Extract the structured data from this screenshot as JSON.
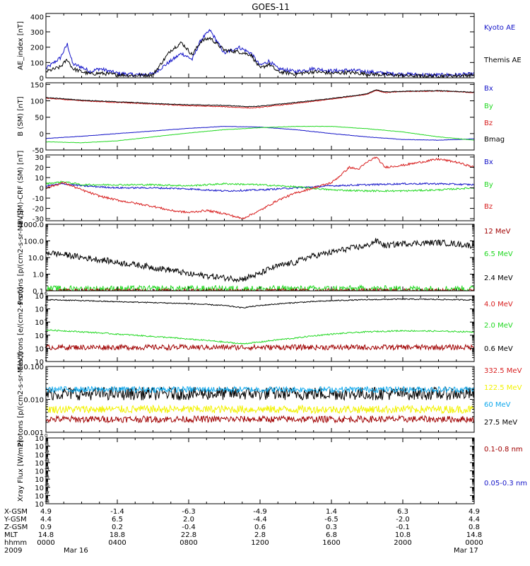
{
  "figure": {
    "title": "GOES-11"
  },
  "colors": {
    "axis": "#000000",
    "black": "#000000",
    "blue": "#1414c8",
    "red": "#d82020",
    "green": "#22d822",
    "darkred": "#a00000",
    "sky": "#10a8ec",
    "yellow": "#f2f200"
  },
  "chart_data": [
    {
      "type": "line",
      "ylabel": "AE_index [nT]",
      "ylim": [
        0,
        420
      ],
      "scale": "linear",
      "yticks": [
        {
          "v": 0,
          "label": "0"
        },
        {
          "v": 100,
          "label": "100"
        },
        {
          "v": 200,
          "label": "200"
        },
        {
          "v": 300,
          "label": "300"
        },
        {
          "v": 400,
          "label": "400"
        }
      ],
      "legend": [
        "Kyoto AE",
        "Themis AE"
      ],
      "series": [
        {
          "name": "Kyoto AE",
          "color": "blue",
          "noise": 12,
          "x": [
            0,
            0.8,
            1.2,
            1.5,
            2.0,
            2.5,
            3.0,
            4.0,
            5.0,
            6.0,
            7.0,
            7.6,
            8.2,
            8.7,
            9.2,
            10.0,
            10.8,
            11.5,
            12.0,
            12.5,
            13.0,
            14.0,
            15.0,
            16.0,
            17.0,
            18.0,
            19.0,
            20.0,
            21.0,
            22.0,
            23.0,
            24.0
          ],
          "y": [
            60,
            130,
            220,
            90,
            70,
            40,
            60,
            30,
            20,
            25,
            110,
            160,
            120,
            250,
            310,
            160,
            200,
            160,
            80,
            110,
            60,
            40,
            60,
            45,
            50,
            40,
            30,
            25,
            20,
            18,
            20,
            25
          ]
        },
        {
          "name": "Themis AE",
          "color": "black",
          "noise": 12,
          "x": [
            0,
            0.8,
            1.2,
            1.5,
            2.0,
            2.5,
            3.0,
            4.0,
            5.0,
            6.0,
            7.0,
            7.6,
            8.2,
            8.7,
            9.2,
            10.0,
            10.8,
            11.5,
            12.0,
            12.5,
            13.0,
            14.0,
            15.0,
            16.0,
            17.0,
            18.0,
            19.0,
            20.0,
            21.0,
            22.0,
            23.0,
            24.0
          ],
          "y": [
            40,
            70,
            120,
            60,
            40,
            25,
            30,
            20,
            15,
            20,
            180,
            230,
            150,
            240,
            260,
            180,
            170,
            150,
            60,
            90,
            40,
            25,
            40,
            30,
            35,
            25,
            20,
            15,
            12,
            12,
            14,
            18
          ]
        }
      ]
    },
    {
      "type": "line",
      "ylabel": "B (SM) [nT]",
      "ylim": [
        -50,
        155
      ],
      "scale": "linear",
      "yticks": [
        {
          "v": -50,
          "label": "-50"
        },
        {
          "v": 0,
          "label": "0"
        },
        {
          "v": 50,
          "label": "50"
        },
        {
          "v": 100,
          "label": "100"
        },
        {
          "v": 150,
          "label": "150"
        }
      ],
      "legend": [
        "Bx",
        "By",
        "Bz",
        "Bmag"
      ],
      "series": [
        {
          "name": "Bx",
          "color": "blue",
          "noise": 0.5,
          "x": [
            0,
            2,
            4,
            6,
            8,
            10,
            12,
            14,
            16,
            18,
            20,
            22,
            24
          ],
          "y": [
            -15,
            -8,
            0,
            8,
            16,
            22,
            20,
            12,
            0,
            -10,
            -18,
            -20,
            -16
          ]
        },
        {
          "name": "By",
          "color": "green",
          "noise": 0.5,
          "x": [
            0,
            2,
            4,
            6,
            8,
            10,
            12,
            14,
            16,
            18,
            20,
            22,
            24
          ],
          "y": [
            -25,
            -28,
            -22,
            -10,
            2,
            12,
            18,
            22,
            22,
            15,
            5,
            -10,
            -20
          ]
        },
        {
          "name": "Bz",
          "color": "red",
          "noise": 1.2,
          "x": [
            0,
            2,
            4,
            6,
            8,
            10,
            11.5,
            12,
            14,
            16,
            18,
            18.5,
            19,
            20,
            22,
            24
          ],
          "y": [
            108,
            100,
            95,
            90,
            85,
            82,
            78,
            80,
            92,
            105,
            120,
            132,
            125,
            128,
            130,
            125
          ]
        },
        {
          "name": "Bmag",
          "color": "black",
          "noise": 1.0,
          "x": [
            0,
            2,
            4,
            6,
            8,
            10,
            11.5,
            12,
            14,
            16,
            18,
            18.5,
            19,
            20,
            22,
            24
          ],
          "y": [
            110,
            102,
            97,
            92,
            88,
            86,
            82,
            84,
            95,
            107,
            121,
            134,
            127,
            129,
            131,
            126
          ]
        }
      ]
    },
    {
      "type": "line",
      "ylabel": "B (SM)-CRF (SM) [nT]",
      "ylim": [
        -32,
        32
      ],
      "scale": "linear",
      "yticks": [
        {
          "v": -30,
          "label": "-30"
        },
        {
          "v": -20,
          "label": "-20"
        },
        {
          "v": -10,
          "label": "-10"
        },
        {
          "v": 0,
          "label": "0"
        },
        {
          "v": 10,
          "label": "10"
        },
        {
          "v": 20,
          "label": "20"
        },
        {
          "v": 30,
          "label": "30"
        }
      ],
      "legend": [
        "Bx",
        "By",
        "Bz"
      ],
      "series": [
        {
          "name": "Bx",
          "color": "blue",
          "noise": 0.8,
          "x": [
            0,
            1,
            2,
            4,
            6,
            8,
            10,
            12,
            14,
            16,
            18,
            20,
            22,
            24
          ],
          "y": [
            2,
            4,
            2,
            0,
            0,
            -1,
            -3,
            -2,
            0,
            2,
            3,
            4,
            4,
            3
          ]
        },
        {
          "name": "By",
          "color": "green",
          "noise": 0.8,
          "x": [
            0,
            1,
            2,
            4,
            6,
            8,
            10,
            12,
            14,
            16,
            18,
            20,
            22,
            24
          ],
          "y": [
            4,
            6,
            3,
            3,
            3,
            2,
            4,
            3,
            1,
            -2,
            -3,
            -3,
            -2,
            0
          ]
        },
        {
          "name": "Bz",
          "color": "red",
          "noise": 1.0,
          "x": [
            0,
            1,
            2,
            3,
            4,
            5,
            6,
            7,
            8,
            9,
            10,
            11,
            12,
            13,
            14,
            15,
            16,
            16.5,
            17,
            17.5,
            18,
            18.5,
            19,
            20,
            21,
            22,
            23,
            24
          ],
          "y": [
            0,
            5,
            -2,
            -8,
            -12,
            -15,
            -18,
            -22,
            -24,
            -22,
            -25,
            -30,
            -22,
            -12,
            -5,
            0,
            5,
            12,
            20,
            18,
            25,
            30,
            20,
            22,
            25,
            28,
            25,
            20
          ]
        }
      ]
    },
    {
      "type": "line",
      "ylabel": "Protons [p/(cm2-s-sr-MeV)]",
      "ylim": [
        0.1,
        1000
      ],
      "scale": "log",
      "yticks": [
        {
          "v": 0.1,
          "label": "0.1"
        },
        {
          "v": 1,
          "label": "1.0"
        },
        {
          "v": 10,
          "label": "10.0"
        },
        {
          "v": 100,
          "label": "100.0"
        },
        {
          "v": 1000,
          "label": "1000.0"
        }
      ],
      "legend": [
        "12 MeV",
        "6.5 MeV",
        "2.4 MeV"
      ],
      "series": [
        {
          "name": "2.4 MeV",
          "color": "black",
          "noise": 0.18,
          "x": [
            0,
            2,
            4,
            6,
            8,
            10,
            11,
            12,
            14,
            16,
            18,
            18.5,
            19,
            20,
            22,
            24
          ],
          "y": [
            20,
            10,
            5,
            2.5,
            1,
            0.6,
            0.5,
            1.0,
            5,
            20,
            50,
            100,
            50,
            70,
            80,
            50
          ]
        },
        {
          "name": "6.5 MeV",
          "color": "green",
          "noise": 0.2,
          "x": [
            0,
            24
          ],
          "y": [
            0.13,
            0.13
          ]
        },
        {
          "name": "12 MeV",
          "color": "darkred",
          "noise": 0.1,
          "x": [
            0,
            24
          ],
          "y": [
            0.105,
            0.105
          ]
        }
      ]
    },
    {
      "type": "line",
      "ylabel": "Electrons [e/(cm2-s-sr)]",
      "ylim": [
        10,
        1000000
      ],
      "scale": "log",
      "yticks": [
        {
          "v": 10,
          "label": "10"
        },
        {
          "v": 100,
          "label": "10"
        },
        {
          "v": 1000,
          "label": "10"
        },
        {
          "v": 10000,
          "label": "10"
        },
        {
          "v": 100000,
          "label": "10"
        },
        {
          "v": 1000000,
          "label": "10"
        }
      ],
      "legend": [
        "4.0 MeV",
        "2.0 MeV",
        "0.6 MeV"
      ],
      "series": [
        {
          "name": "0.6 MeV",
          "color": "black",
          "noise": 0.04,
          "x": [
            0,
            4,
            8,
            10,
            11,
            12,
            14,
            16,
            18,
            20,
            22,
            24
          ],
          "y": [
            500000,
            350000,
            250000,
            180000,
            120000,
            180000,
            300000,
            420000,
            500000,
            550000,
            520000,
            480000
          ]
        },
        {
          "name": "2.0 MeV",
          "color": "green",
          "noise": 0.05,
          "x": [
            0,
            2,
            4,
            6,
            8,
            10,
            11,
            12,
            14,
            16,
            18,
            20,
            22,
            24
          ],
          "y": [
            2500,
            1800,
            1200,
            800,
            500,
            300,
            220,
            300,
            600,
            1200,
            1800,
            2200,
            2000,
            1800
          ]
        },
        {
          "name": "4.0 MeV",
          "color": "darkred",
          "noise": 0.2,
          "x": [
            0,
            24
          ],
          "y": [
            120,
            120
          ]
        }
      ]
    },
    {
      "type": "line",
      "ylabel": "Protons [p/(cm2-s-sr-MeV)]",
      "ylim": [
        0.001,
        0.1
      ],
      "scale": "log",
      "yticks": [
        {
          "v": 0.001,
          "label": "0.001"
        },
        {
          "v": 0.01,
          "label": "0.010"
        },
        {
          "v": 0.1,
          "label": "0.100"
        }
      ],
      "legend": [
        "332.5 MeV",
        "122.5 MeV",
        "60 MeV",
        "27.5 MeV"
      ],
      "series": [
        {
          "name": "332.5 MeV",
          "color": "darkred",
          "noise": 0.1,
          "x": [
            0,
            24
          ],
          "y": [
            0.0025,
            0.0025
          ]
        },
        {
          "name": "122.5 MeV",
          "color": "yellow",
          "noise": 0.12,
          "x": [
            0,
            24
          ],
          "y": [
            0.005,
            0.005
          ]
        },
        {
          "name": "27.5 MeV",
          "color": "black",
          "noise": 0.2,
          "x": [
            0,
            24
          ],
          "y": [
            0.015,
            0.015
          ]
        },
        {
          "name": "60 MeV",
          "color": "sky",
          "noise": 0.09,
          "x": [
            0,
            24
          ],
          "y": [
            0.02,
            0.02
          ]
        }
      ]
    },
    {
      "type": "line",
      "ylabel": "Xray Flux [W/m2]",
      "ylim": [
        1e-08,
        1
      ],
      "scale": "log",
      "yticks": [
        {
          "v": 1e-08,
          "label": "10"
        },
        {
          "v": 1e-07,
          "label": "10"
        },
        {
          "v": 1e-06,
          "label": "10"
        },
        {
          "v": 1e-05,
          "label": "10"
        },
        {
          "v": 0.0001,
          "label": "10"
        },
        {
          "v": 0.001,
          "label": "10"
        },
        {
          "v": 0.01,
          "label": "10"
        },
        {
          "v": 0.1,
          "label": "10"
        },
        {
          "v": 1,
          "label": "10"
        }
      ],
      "legend": [
        "0.1-0.8 nm",
        "0.05-0.3 nm"
      ],
      "series": []
    }
  ],
  "x_axis": {
    "ticks_hours": [
      0,
      4,
      8,
      12,
      16,
      20,
      24
    ],
    "minor_every_hours": 1,
    "rows": [
      {
        "name": "X-GSM",
        "values": [
          "4.9",
          "-1.4",
          "-6.3",
          "-4.9",
          "1.4",
          "6.3",
          "4.9"
        ]
      },
      {
        "name": "Y-GSM",
        "values": [
          "4.4",
          "6.5",
          "2.0",
          "-4.4",
          "-6.5",
          "-2.0",
          "4.4"
        ]
      },
      {
        "name": "Z-GSM",
        "values": [
          "0.9",
          "0.2",
          "-0.4",
          "0.6",
          "0.3",
          "-0.1",
          "0.8"
        ]
      },
      {
        "name": "MLT",
        "values": [
          "14.8",
          "18.8",
          "22.8",
          "2.8",
          "6.8",
          "10.8",
          "14.8"
        ]
      },
      {
        "name": "hhmm",
        "values": [
          "0000",
          "0400",
          "0800",
          "1200",
          "1600",
          "2000",
          "0000"
        ]
      },
      {
        "name": "2009",
        "values": [
          "Mar 16",
          "",
          "",
          "",
          "",
          "",
          "Mar 17"
        ]
      }
    ]
  }
}
